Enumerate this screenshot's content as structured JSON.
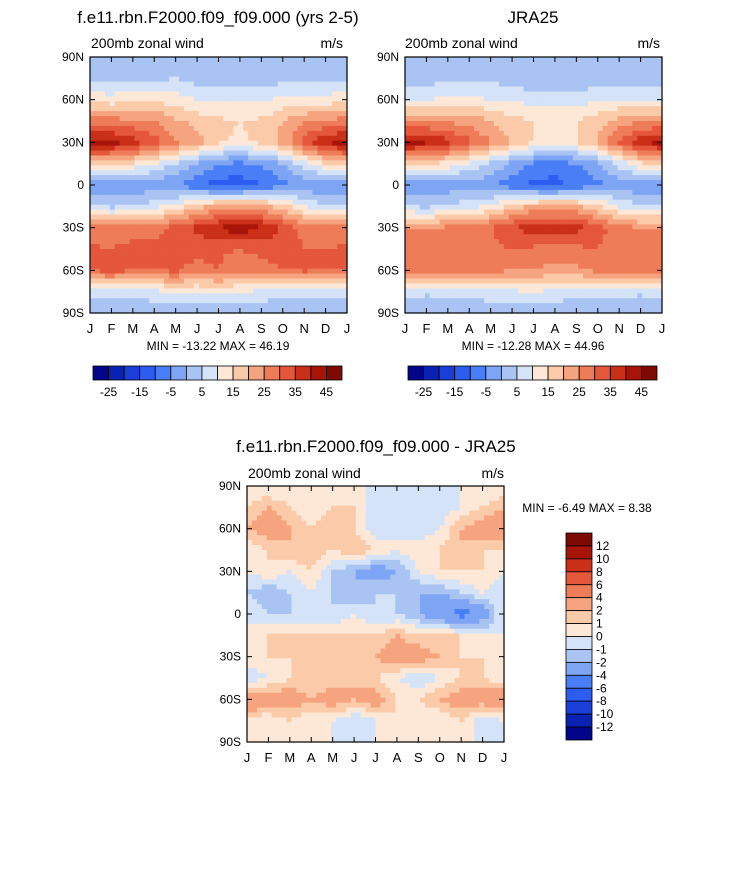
{
  "panels": [
    {
      "id": "model",
      "title": "f.e11.rbn.F2000.f09_f09.000 (yrs 2-5)",
      "left_label": "200mb zonal wind",
      "right_label": "m/s",
      "minmax_label": "MIN = -13.22 MAX =  46.19"
    },
    {
      "id": "obs",
      "title": "JRA25",
      "left_label": "200mb zonal wind",
      "right_label": "m/s",
      "minmax_label": "MIN = -12.28 MAX =  44.96"
    },
    {
      "id": "diff",
      "title": "f.e11.rbn.F2000.f09_f09.000 - JRA25",
      "left_label": "200mb zonal wind",
      "right_label": "m/s",
      "minmax_label": "MIN =  -6.49 MAX =   8.38"
    }
  ],
  "chart_data": [
    {
      "type": "heatmap",
      "title": "f.e11.rbn.F2000.f09_f09.000 (yrs 2-5)",
      "xlabel": "",
      "ylabel": "",
      "x_ticks": [
        "J",
        "F",
        "M",
        "A",
        "M",
        "J",
        "J",
        "A",
        "S",
        "O",
        "N",
        "D",
        "J"
      ],
      "y_ticks": [
        "90N",
        "60N",
        "30N",
        "0",
        "30S",
        "60S",
        "90S"
      ],
      "ylim": [
        -90,
        90
      ],
      "units": "m/s",
      "min": -13.22,
      "max": 46.19,
      "colorbar_levels": [
        -25,
        -20,
        -15,
        -10,
        -5,
        0,
        5,
        10,
        15,
        20,
        25,
        30,
        35,
        40,
        45
      ],
      "colorbar_labels": [
        "-25",
        "-15",
        "-5",
        "5",
        "15",
        "25",
        "35",
        "45"
      ],
      "colorbar_colors": [
        "#02048a",
        "#0a22b4",
        "#1a3ed8",
        "#2c5cf0",
        "#4a7ef6",
        "#7ea4f4",
        "#a9c3f3",
        "#d4e3f7",
        "#fde8d8",
        "#fbcaa9",
        "#f6a47f",
        "#ef7c58",
        "#e4573a",
        "#ca3018",
        "#a81408",
        "#7e0a04"
      ],
      "lat": [
        90,
        75,
        60,
        45,
        30,
        15,
        0,
        -15,
        -30,
        -45,
        -60,
        -75,
        -90
      ],
      "months": [
        "J",
        "F",
        "M",
        "A",
        "M",
        "J",
        "J",
        "A",
        "S",
        "O",
        "N",
        "D",
        "J"
      ],
      "values": [
        [
          0,
          0,
          0,
          0,
          0,
          0,
          0,
          0,
          0,
          0,
          0,
          0,
          0
        ],
        [
          4,
          4,
          4,
          4,
          5,
          3,
          2,
          2,
          2,
          3,
          4,
          4,
          4
        ],
        [
          13,
          12,
          13,
          14,
          12,
          10,
          9,
          9,
          9,
          11,
          12,
          12,
          13
        ],
        [
          27,
          27,
          26,
          25,
          21,
          18,
          16,
          15,
          16,
          20,
          24,
          26,
          27
        ],
        [
          43,
          42,
          38,
          32,
          26,
          22,
          16,
          14,
          16,
          22,
          32,
          40,
          43
        ],
        [
          18,
          18,
          14,
          10,
          5,
          0,
          -5,
          -6,
          -4,
          0,
          8,
          15,
          18
        ],
        [
          -5,
          -5,
          -4,
          -3,
          -5,
          -9,
          -12,
          -13,
          -10,
          -7,
          -4,
          -5,
          -5
        ],
        [
          5,
          4,
          5,
          8,
          12,
          18,
          22,
          24,
          22,
          17,
          10,
          6,
          5
        ],
        [
          26,
          26,
          27,
          28,
          32,
          36,
          40,
          44,
          40,
          34,
          28,
          26,
          26
        ],
        [
          31,
          30,
          32,
          32,
          31,
          32,
          31,
          30,
          32,
          33,
          30,
          30,
          31
        ],
        [
          30,
          32,
          30,
          30,
          31,
          28,
          30,
          26,
          27,
          30,
          31,
          30,
          30
        ],
        [
          8,
          7,
          8,
          9,
          10,
          10,
          11,
          10,
          9,
          8,
          8,
          7,
          8
        ],
        [
          0,
          0,
          0,
          0,
          0,
          0,
          0,
          0,
          0,
          0,
          0,
          0,
          0
        ]
      ]
    },
    {
      "type": "heatmap",
      "title": "JRA25",
      "xlabel": "",
      "ylabel": "",
      "x_ticks": [
        "J",
        "F",
        "M",
        "A",
        "M",
        "J",
        "J",
        "A",
        "S",
        "O",
        "N",
        "D",
        "J"
      ],
      "y_ticks": [
        "90N",
        "60N",
        "30N",
        "0",
        "30S",
        "60S",
        "90S"
      ],
      "ylim": [
        -90,
        90
      ],
      "units": "m/s",
      "min": -12.28,
      "max": 44.96,
      "colorbar_levels": [
        -25,
        -20,
        -15,
        -10,
        -5,
        0,
        5,
        10,
        15,
        20,
        25,
        30,
        35,
        40,
        45
      ],
      "colorbar_labels": [
        "-25",
        "-15",
        "-5",
        "5",
        "15",
        "25",
        "35",
        "45"
      ],
      "colorbar_colors": [
        "#02048a",
        "#0a22b4",
        "#1a3ed8",
        "#2c5cf0",
        "#4a7ef6",
        "#7ea4f4",
        "#a9c3f3",
        "#d4e3f7",
        "#fde8d8",
        "#fbcaa9",
        "#f6a47f",
        "#ef7c58",
        "#e4573a",
        "#ca3018",
        "#a81408",
        "#7e0a04"
      ],
      "lat": [
        90,
        75,
        60,
        45,
        30,
        15,
        0,
        -15,
        -30,
        -45,
        -60,
        -75,
        -90
      ],
      "months": [
        "J",
        "F",
        "M",
        "A",
        "M",
        "J",
        "J",
        "A",
        "S",
        "O",
        "N",
        "D",
        "J"
      ],
      "values": [
        [
          0,
          0,
          0,
          0,
          0,
          0,
          0,
          0,
          0,
          0,
          0,
          0,
          0
        ],
        [
          3,
          3,
          3,
          3,
          4,
          2,
          1,
          1,
          1,
          2,
          3,
          3,
          3
        ],
        [
          10,
          10,
          11,
          11,
          10,
          9,
          8,
          8,
          8,
          9,
          10,
          10,
          10
        ],
        [
          25,
          25,
          24,
          23,
          20,
          17,
          15,
          14,
          15,
          18,
          22,
          24,
          25
        ],
        [
          42,
          41,
          37,
          31,
          25,
          20,
          15,
          13,
          15,
          21,
          31,
          39,
          42
        ],
        [
          18,
          17,
          13,
          9,
          4,
          -1,
          -6,
          -7,
          -5,
          -1,
          7,
          14,
          18
        ],
        [
          -4,
          -4,
          -3,
          -2,
          -4,
          -8,
          -11,
          -12,
          -9,
          -6,
          -3,
          -4,
          -4
        ],
        [
          5,
          4,
          5,
          8,
          11,
          17,
          21,
          22,
          21,
          16,
          9,
          6,
          5
        ],
        [
          25,
          25,
          26,
          27,
          30,
          34,
          38,
          38,
          37,
          32,
          27,
          25,
          25
        ],
        [
          29,
          28,
          29,
          30,
          29,
          30,
          29,
          28,
          29,
          30,
          28,
          28,
          29
        ],
        [
          26,
          27,
          26,
          26,
          27,
          25,
          25,
          23,
          24,
          26,
          27,
          26,
          26
        ],
        [
          7,
          6,
          7,
          8,
          9,
          9,
          10,
          9,
          8,
          7,
          7,
          6,
          7
        ],
        [
          0,
          0,
          0,
          0,
          0,
          0,
          0,
          0,
          0,
          0,
          0,
          0,
          0
        ]
      ]
    },
    {
      "type": "heatmap",
      "title": "f.e11.rbn.F2000.f09_f09.000 - JRA25",
      "xlabel": "",
      "ylabel": "",
      "x_ticks": [
        "J",
        "F",
        "M",
        "A",
        "M",
        "J",
        "J",
        "A",
        "S",
        "O",
        "N",
        "D",
        "J"
      ],
      "y_ticks": [
        "90N",
        "60N",
        "30N",
        "0",
        "30S",
        "60S",
        "90S"
      ],
      "ylim": [
        -90,
        90
      ],
      "units": "m/s",
      "min": -6.49,
      "max": 8.38,
      "colorbar_levels": [
        -12,
        -10,
        -8,
        -6,
        -4,
        -2,
        -1,
        0,
        1,
        2,
        4,
        6,
        8,
        10,
        12
      ],
      "colorbar_labels": [
        "12",
        "10",
        "8",
        "6",
        "4",
        "2",
        "1",
        "0",
        "-1",
        "-2",
        "-4",
        "-6",
        "-8",
        "-10",
        "-12"
      ],
      "colorbar_colors": [
        "#02048a",
        "#0a22b4",
        "#1a3ed8",
        "#2c5cf0",
        "#4a7ef6",
        "#7ea4f4",
        "#a9c3f3",
        "#d4e3f7",
        "#fde8d8",
        "#fbcaa9",
        "#f6a47f",
        "#ef7c58",
        "#e4573a",
        "#ca3018",
        "#a81408",
        "#7e0a04"
      ],
      "lat": [
        90,
        75,
        60,
        45,
        30,
        15,
        0,
        -15,
        -30,
        -45,
        -60,
        -75,
        -90
      ],
      "months": [
        "J",
        "F",
        "M",
        "A",
        "M",
        "J",
        "J",
        "A",
        "S",
        "O",
        "N",
        "D",
        "J"
      ],
      "values": [
        [
          0,
          0,
          0,
          0,
          0,
          0,
          0,
          0,
          0,
          0,
          0,
          0,
          0
        ],
        [
          1,
          2,
          1,
          0,
          1,
          1,
          -1,
          0,
          -1,
          -1,
          0,
          1,
          2
        ],
        [
          2,
          3,
          2,
          1,
          2,
          1,
          -1,
          0,
          -1,
          0,
          2,
          3,
          3
        ],
        [
          0,
          1,
          2,
          2,
          1,
          2,
          1,
          0,
          1,
          1,
          2,
          1,
          1
        ],
        [
          0,
          1,
          0,
          1,
          -1,
          -2,
          -3,
          -2,
          0,
          1,
          1,
          1,
          0
        ],
        [
          -1,
          -2,
          -1,
          0,
          -1,
          -2,
          -1,
          -1,
          -2,
          -2,
          -1,
          0,
          -1
        ],
        [
          0,
          -1,
          -1,
          -1,
          -1,
          0,
          -1,
          -1,
          -2,
          -3,
          -5,
          -3,
          0
        ],
        [
          0,
          1,
          1,
          1,
          1,
          1,
          1,
          2,
          1,
          1,
          1,
          0,
          0
        ],
        [
          1,
          1,
          1,
          1,
          2,
          2,
          2,
          3,
          3,
          2,
          1,
          1,
          1
        ],
        [
          -1,
          0,
          1,
          1,
          1,
          2,
          1,
          0,
          -1,
          0,
          1,
          1,
          0
        ],
        [
          4,
          3,
          3,
          2,
          3,
          2,
          3,
          1,
          1,
          2,
          3,
          3,
          4
        ],
        [
          1,
          0,
          1,
          0,
          0,
          -1,
          0,
          1,
          0,
          0,
          1,
          -1,
          0
        ],
        [
          0,
          0,
          0,
          0,
          0,
          0,
          0,
          0,
          0,
          0,
          0,
          0,
          0
        ]
      ]
    }
  ]
}
